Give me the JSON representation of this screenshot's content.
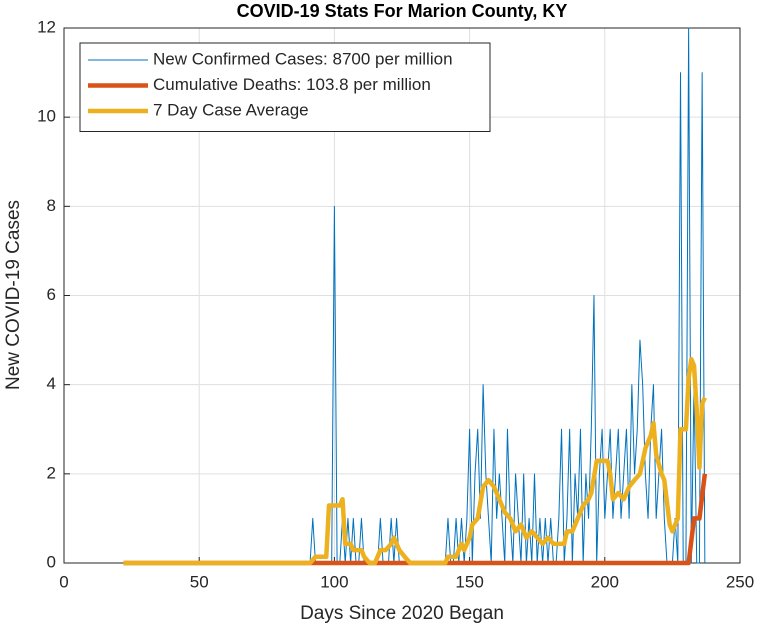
{
  "chart_data": {
    "type": "line",
    "title": "COVID-19 Stats For Marion County, KY",
    "xlabel": "Days Since 2020 Began",
    "ylabel": "New COVID-19 Cases",
    "xlim": [
      0,
      250
    ],
    "xticks": [
      0,
      50,
      100,
      150,
      200,
      250
    ],
    "ylim": [
      0,
      12
    ],
    "yticks": [
      0,
      2,
      4,
      6,
      8,
      10,
      12
    ],
    "grid": true,
    "legend": "northwest",
    "series": [
      {
        "name": "New Confirmed Cases: 8700 per million",
        "color": "#0072bd",
        "width": 1,
        "x": [
          22,
          91,
          92,
          93,
          94,
          95,
          96,
          97,
          98,
          99,
          100,
          101,
          102,
          103,
          104,
          105,
          106,
          107,
          108,
          109,
          110,
          111,
          112,
          113,
          114,
          115,
          116,
          117,
          118,
          119,
          120,
          121,
          122,
          123,
          124,
          125,
          126,
          127,
          128,
          129,
          130,
          131,
          132,
          133,
          134,
          135,
          136,
          137,
          138,
          139,
          140,
          141,
          142,
          143,
          144,
          145,
          146,
          147,
          148,
          149,
          150,
          151,
          152,
          153,
          154,
          155,
          156,
          157,
          158,
          159,
          160,
          161,
          162,
          163,
          164,
          165,
          166,
          167,
          168,
          169,
          170,
          171,
          172,
          173,
          174,
          175,
          176,
          177,
          178,
          179,
          180,
          181,
          182,
          183,
          184,
          185,
          186,
          187,
          188,
          189,
          190,
          191,
          192,
          193,
          194,
          195,
          196,
          197,
          198,
          199,
          200,
          201,
          202,
          203,
          204,
          205,
          206,
          207,
          208,
          209,
          210,
          211,
          212,
          213,
          214,
          215,
          216,
          217,
          218,
          219,
          220,
          221,
          222,
          223,
          224,
          225,
          226,
          227,
          228,
          229,
          230,
          231,
          232,
          233,
          234,
          235,
          236,
          237
        ],
        "values": [
          0,
          0,
          1,
          0,
          0,
          0,
          0,
          0,
          0,
          0,
          8,
          0,
          0,
          1,
          0,
          1,
          0,
          1,
          0,
          0,
          1,
          0,
          0,
          0,
          0,
          0,
          0,
          1,
          0,
          0,
          0,
          1,
          0,
          1,
          0,
          0,
          0,
          0,
          0,
          0,
          0,
          0,
          0,
          0,
          0,
          0,
          0,
          0,
          0,
          0,
          0,
          0,
          1,
          0,
          0,
          1,
          0,
          1,
          0,
          1,
          3,
          0,
          2,
          3,
          1,
          4,
          2,
          1,
          0,
          3,
          1,
          2,
          1,
          0,
          3,
          1,
          0,
          2,
          1,
          0,
          2,
          0,
          1,
          0,
          2,
          0,
          1,
          0,
          1,
          0,
          1,
          0,
          0,
          1,
          3,
          0,
          1,
          3,
          0,
          2,
          1,
          3,
          0,
          2,
          1,
          3,
          6,
          0,
          2,
          3,
          1,
          2,
          3,
          1,
          2,
          3,
          1,
          2,
          3,
          1,
          4,
          2,
          3,
          5,
          4,
          2,
          1,
          3,
          4,
          1,
          2,
          3,
          1,
          0,
          0,
          0,
          1,
          0,
          11,
          0,
          0,
          12,
          0,
          4,
          0,
          0,
          11,
          0
        ]
      },
      {
        "name": "Cumulative Deaths: 103.8 per million",
        "color": "#d95319",
        "width": 4.5,
        "x": [
          22,
          231,
          233,
          235,
          237
        ],
        "values": [
          0,
          0,
          1,
          1,
          2
        ]
      },
      {
        "name": "7 Day Case Average",
        "color": "#edb120",
        "width": 4.5,
        "x": [
          22,
          91,
          93,
          97,
          98,
          102,
          103,
          104,
          106,
          107,
          110,
          111,
          113,
          115,
          117,
          119,
          121,
          122,
          124,
          126,
          128,
          141,
          142,
          145,
          146,
          147,
          148,
          149,
          150,
          151,
          153,
          155,
          157,
          159,
          161,
          163,
          165,
          167,
          169,
          171,
          173,
          175,
          177,
          179,
          181,
          183,
          185,
          186,
          188,
          190,
          192,
          194,
          195,
          197,
          199,
          201,
          202,
          203,
          205,
          207,
          209,
          211,
          213,
          215,
          217,
          218,
          219,
          221,
          222,
          224,
          225,
          227,
          228,
          230,
          231,
          232,
          233,
          234,
          235,
          236,
          237
        ],
        "values": [
          0,
          0,
          0.14,
          0.14,
          1.29,
          1.29,
          1.43,
          0.43,
          0.43,
          0.29,
          0.29,
          0.14,
          0,
          0,
          0.29,
          0.29,
          0.43,
          0.57,
          0.29,
          0.14,
          0,
          0,
          0.14,
          0.14,
          0.29,
          0.43,
          0.29,
          0.43,
          0.57,
          0.86,
          1,
          1.71,
          1.86,
          1.71,
          1.43,
          1.14,
          1,
          0.71,
          0.86,
          0.57,
          0.71,
          0.57,
          0.43,
          0.57,
          0.43,
          0.43,
          0.43,
          0.71,
          0.71,
          1,
          1.29,
          1.43,
          1.57,
          2.29,
          2.29,
          2.29,
          2,
          1.43,
          1.57,
          1.43,
          1.71,
          1.86,
          2,
          2.57,
          2.86,
          3.14,
          2.43,
          2,
          1.86,
          0.86,
          0.71,
          1,
          3,
          3,
          4.14,
          4.57,
          4.43,
          3.43,
          2.14,
          3.57,
          3.71
        ]
      }
    ]
  }
}
